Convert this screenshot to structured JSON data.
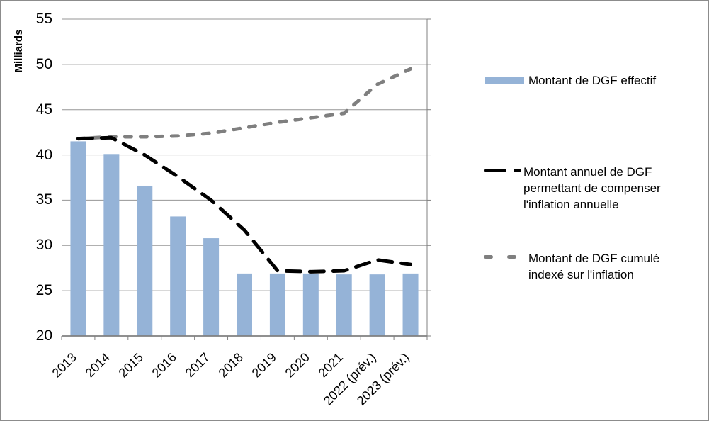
{
  "chart_data": {
    "type": "combo",
    "title": "",
    "ylabel": "Milliards",
    "xlabel": "",
    "categories": [
      "2013",
      "2014",
      "2015",
      "2016",
      "2017",
      "2018",
      "2019",
      "2020",
      "2021",
      "2022 (prév.)",
      "2023 (prév.)"
    ],
    "ylim": [
      20,
      55
    ],
    "yticks": [
      20,
      25,
      30,
      35,
      40,
      45,
      50,
      55
    ],
    "grid": true,
    "legend_position": "right",
    "series": [
      {
        "name": "Montant de DGF effectif",
        "type": "bar",
        "values": [
          41.5,
          40.1,
          36.6,
          33.2,
          30.8,
          26.9,
          26.9,
          26.9,
          26.8,
          26.8,
          26.9
        ]
      },
      {
        "name": "Montant annuel de DGF permettant de compenser l'inflation annuelle",
        "type": "line",
        "dash": "long-dash",
        "values": [
          41.8,
          41.9,
          40.0,
          37.6,
          35.0,
          31.7,
          27.2,
          27.1,
          27.2,
          28.4,
          27.9
        ]
      },
      {
        "name": "Montant de DGF cumulé indexé sur l'inflation",
        "type": "line",
        "dash": "short-dash",
        "values": [
          41.8,
          42.0,
          42.0,
          42.1,
          42.4,
          43.0,
          43.6,
          44.1,
          44.6,
          47.8,
          49.5
        ]
      }
    ]
  },
  "legend": {
    "items": [
      {
        "lines": [
          "Montant de DGF effectif"
        ]
      },
      {
        "lines": [
          "Montant annuel de DGF",
          "permettant de compenser",
          "l'inflation annuelle"
        ]
      },
      {
        "lines": [
          "Montant de DGF cumulé",
          "indexé sur l'inflation"
        ]
      }
    ]
  },
  "colors": {
    "bar": "#95B3D7",
    "line_black": "#000000",
    "line_gray": "#7F7F7F",
    "gridline": "#969696",
    "axis": "#808080",
    "border": "#8C8C8C",
    "text": "#000000"
  }
}
